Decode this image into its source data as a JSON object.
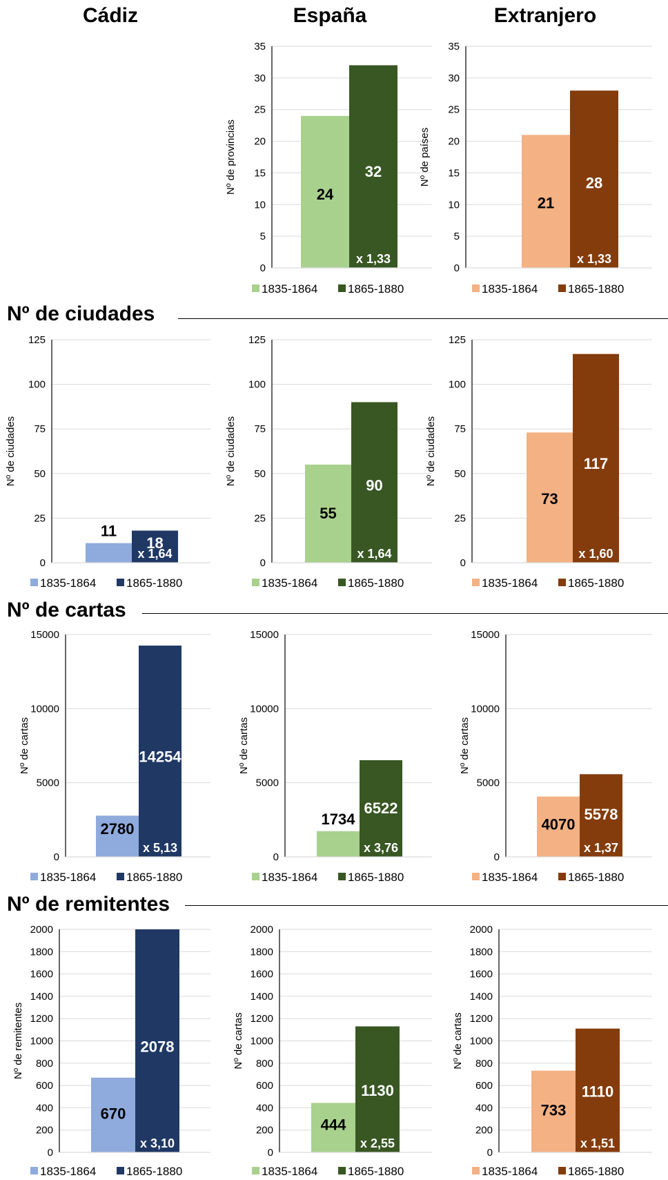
{
  "column_titles": [
    "Cádiz",
    "España",
    "Extranjero"
  ],
  "section_titles": [
    "Nº de ciudades",
    "Nº de cartas",
    "Nº de remitentes"
  ],
  "colors": {
    "cadiz_light": "#8faadc",
    "cadiz_dark": "#203864",
    "espana_light": "#a9d18e",
    "espana_dark": "#385723",
    "extranjero_light": "#f4b183",
    "extranjero_dark": "#843c0c"
  },
  "chart_data": [
    {
      "id": "provincias-espana",
      "type": "bar",
      "ylabel": "Nº de provincias",
      "ylim": [
        0,
        35
      ],
      "yticks": [
        0,
        5,
        10,
        15,
        20,
        25,
        30,
        35
      ],
      "series": [
        {
          "name": "1835-1864",
          "values": [
            24
          ]
        },
        {
          "name": "1865-1880",
          "values": [
            32
          ]
        }
      ],
      "data_labels": [
        "24",
        "32"
      ],
      "ratio_label": "x 1,33",
      "legend": "bottom",
      "grid": true,
      "palette": "espana"
    },
    {
      "id": "paises-extranjero",
      "type": "bar",
      "ylabel": "Nº de países",
      "ylim": [
        0,
        35
      ],
      "yticks": [
        0,
        5,
        10,
        15,
        20,
        25,
        30,
        35
      ],
      "series": [
        {
          "name": "1835-1864",
          "values": [
            21
          ]
        },
        {
          "name": "1865-1880",
          "values": [
            28
          ]
        }
      ],
      "data_labels": [
        "21",
        "28"
      ],
      "ratio_label": "x 1,33",
      "legend": "bottom",
      "grid": true,
      "palette": "extranjero"
    },
    {
      "id": "ciudades-cadiz",
      "type": "bar",
      "ylabel": "Nº de ciudades",
      "ylim": [
        0,
        125
      ],
      "yticks": [
        0,
        25,
        50,
        75,
        100,
        125
      ],
      "series": [
        {
          "name": "1835-1864",
          "values": [
            11
          ]
        },
        {
          "name": "1865-1880",
          "values": [
            18
          ]
        }
      ],
      "data_labels": [
        "11",
        "18"
      ],
      "ratio_label": "x 1,64",
      "legend": "bottom",
      "grid": true,
      "palette": "cadiz"
    },
    {
      "id": "ciudades-espana",
      "type": "bar",
      "ylabel": "Nº de ciudades",
      "ylim": [
        0,
        125
      ],
      "yticks": [
        0,
        25,
        50,
        75,
        100,
        125
      ],
      "series": [
        {
          "name": "1835-1864",
          "values": [
            55
          ]
        },
        {
          "name": "1865-1880",
          "values": [
            90
          ]
        }
      ],
      "data_labels": [
        "55",
        "90"
      ],
      "ratio_label": "x 1,64",
      "legend": "bottom",
      "grid": true,
      "palette": "espana"
    },
    {
      "id": "ciudades-extranjero",
      "type": "bar",
      "ylabel": "Nº de ciudades",
      "ylim": [
        0,
        125
      ],
      "yticks": [
        0,
        25,
        50,
        75,
        100,
        125
      ],
      "series": [
        {
          "name": "1835-1864",
          "values": [
            73
          ]
        },
        {
          "name": "1865-1880",
          "values": [
            117
          ]
        }
      ],
      "data_labels": [
        "73",
        "117"
      ],
      "ratio_label": "x 1,60",
      "legend": "bottom",
      "grid": true,
      "palette": "extranjero"
    },
    {
      "id": "cartas-cadiz",
      "type": "bar",
      "ylabel": "Nº de cartas",
      "ylim": [
        0,
        15000
      ],
      "yticks": [
        0,
        5000,
        10000,
        15000
      ],
      "series": [
        {
          "name": "1835-1864",
          "values": [
            2780
          ]
        },
        {
          "name": "1865-1880",
          "values": [
            14254
          ]
        }
      ],
      "data_labels": [
        "2780",
        "14254"
      ],
      "ratio_label": "x 5,13",
      "legend": "bottom",
      "grid": true,
      "palette": "cadiz"
    },
    {
      "id": "cartas-espana",
      "type": "bar",
      "ylabel": "Nº de cartas",
      "ylim": [
        0,
        15000
      ],
      "yticks": [
        0,
        5000,
        10000,
        15000
      ],
      "series": [
        {
          "name": "1835-1864",
          "values": [
            1734
          ]
        },
        {
          "name": "1865-1880",
          "values": [
            6522
          ]
        }
      ],
      "data_labels": [
        "1734",
        "6522"
      ],
      "ratio_label": "x 3,76",
      "legend": "bottom",
      "grid": true,
      "palette": "espana"
    },
    {
      "id": "cartas-extranjero",
      "type": "bar",
      "ylabel": "Nº de cartas",
      "ylim": [
        0,
        15000
      ],
      "yticks": [
        0,
        5000,
        10000,
        15000
      ],
      "series": [
        {
          "name": "1835-1864",
          "values": [
            4070
          ]
        },
        {
          "name": "1865-1880",
          "values": [
            5578
          ]
        }
      ],
      "data_labels": [
        "4070",
        "5578"
      ],
      "ratio_label": "x 1,37",
      "legend": "bottom",
      "grid": true,
      "palette": "extranjero"
    },
    {
      "id": "remitentes-cadiz",
      "type": "bar",
      "ylabel": "Nº de remitentes",
      "ylim": [
        0,
        2000
      ],
      "yticks": [
        0,
        200,
        400,
        600,
        800,
        1000,
        1200,
        1400,
        1600,
        1800,
        2000
      ],
      "series": [
        {
          "name": "1835-1864",
          "values": [
            670
          ]
        },
        {
          "name": "1865-1880",
          "values": [
            2078
          ]
        }
      ],
      "data_labels": [
        "670",
        "2078"
      ],
      "ratio_label": "x 3,10",
      "legend": "bottom",
      "grid": true,
      "palette": "cadiz"
    },
    {
      "id": "remitentes-espana",
      "type": "bar",
      "ylabel": "Nº de cartas",
      "ylim": [
        0,
        2000
      ],
      "yticks": [
        0,
        200,
        400,
        600,
        800,
        1000,
        1200,
        1400,
        1600,
        1800,
        2000
      ],
      "series": [
        {
          "name": "1835-1864",
          "values": [
            444
          ]
        },
        {
          "name": "1865-1880",
          "values": [
            1130
          ]
        }
      ],
      "data_labels": [
        "444",
        "1130"
      ],
      "ratio_label": "x 2,55",
      "legend": "bottom",
      "grid": true,
      "palette": "espana"
    },
    {
      "id": "remitentes-extranjero",
      "type": "bar",
      "ylabel": "Nº de cartas",
      "ylim": [
        0,
        2000
      ],
      "yticks": [
        0,
        200,
        400,
        600,
        800,
        1000,
        1200,
        1400,
        1600,
        1800,
        2000
      ],
      "series": [
        {
          "name": "1835-1864",
          "values": [
            733
          ]
        },
        {
          "name": "1865-1880",
          "values": [
            1110
          ]
        }
      ],
      "data_labels": [
        "733",
        "1110"
      ],
      "ratio_label": "x 1,51",
      "legend": "bottom",
      "grid": true,
      "palette": "extranjero"
    }
  ]
}
